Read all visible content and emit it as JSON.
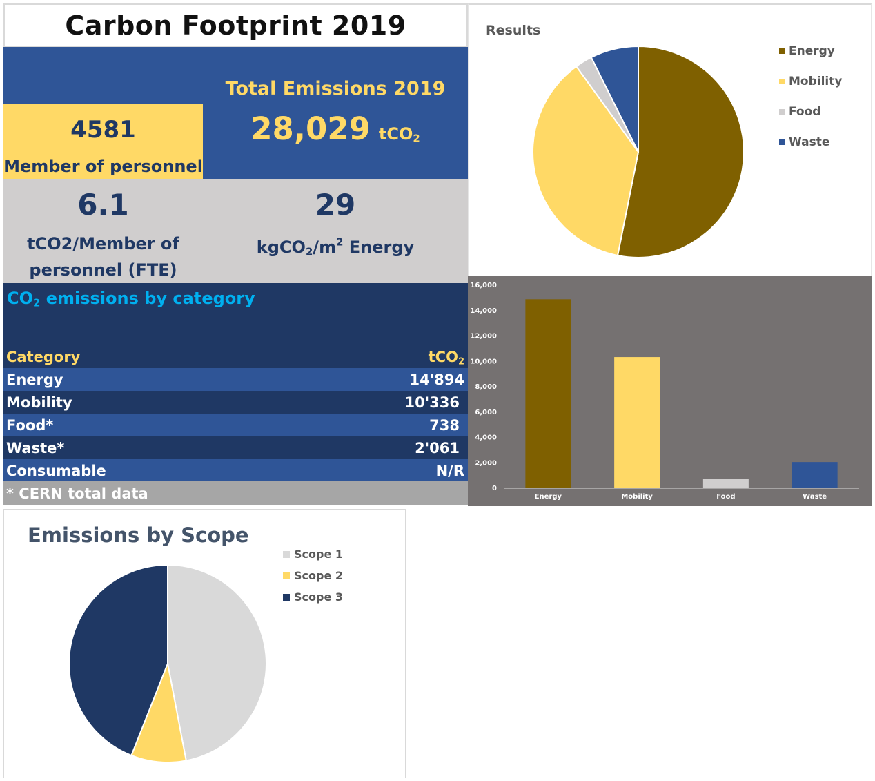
{
  "header": {
    "title": "Carbon Footprint 2019"
  },
  "summary": {
    "personnel_value": "4581",
    "personnel_label": "Member of personnel",
    "total_label": "Total Emissions 2019",
    "total_value": "28,029",
    "total_unit_prefix": "tCO",
    "total_unit_sub": "2"
  },
  "kpis": {
    "per_person_value": "6.1",
    "per_person_label_line1": "tCO2/Member of",
    "per_person_label_line2": "personnel (FTE)",
    "per_area_value": "29",
    "per_area_label_kg": "kgCO",
    "per_area_label_sub": "2",
    "per_area_label_m": "/m",
    "per_area_label_sup": "2",
    "per_area_label_tail": " Energy"
  },
  "category_table": {
    "heading_prefix": "CO",
    "heading_sub": "2",
    "heading_tail": " emissions by category",
    "col_category": "Category",
    "col_unit_prefix": "tCO",
    "col_unit_sub": "2",
    "rows": [
      {
        "category": "Energy",
        "value": "14'894"
      },
      {
        "category": "Mobility",
        "value": "10'336"
      },
      {
        "category": "Food*",
        "value": "738"
      },
      {
        "category": "Waste*",
        "value": "2'061"
      },
      {
        "category": "Consumable",
        "value": "N/R"
      }
    ],
    "footnote": "* CERN total data"
  },
  "colors": {
    "energy": "#7f6000",
    "mobility": "#ffd966",
    "food": "#d0cece",
    "waste": "#2f5597",
    "scope1": "#d9d9d9",
    "scope2": "#ffd966",
    "scope3": "#1f3864"
  },
  "chart_data": [
    {
      "type": "pie",
      "title": "Results",
      "categories": [
        "Energy",
        "Mobility",
        "Food",
        "Waste"
      ],
      "values": [
        14894,
        10336,
        738,
        2061
      ],
      "legend": "right"
    },
    {
      "type": "bar",
      "categories": [
        "Energy",
        "Mobility",
        "Food",
        "Waste"
      ],
      "values": [
        14894,
        10336,
        738,
        2061
      ],
      "ylim": [
        0,
        16000
      ],
      "yticks": [
        "0",
        "2,000",
        "4,000",
        "6,000",
        "8,000",
        "10,000",
        "12,000",
        "14,000",
        "16,000"
      ],
      "ytick_values": [
        0,
        2000,
        4000,
        6000,
        8000,
        10000,
        12000,
        14000,
        16000
      ],
      "grid": false
    },
    {
      "type": "pie",
      "title": "Emissions by Scope",
      "categories": [
        "Scope 1",
        "Scope 2",
        "Scope 3"
      ],
      "values": [
        47,
        9,
        44
      ],
      "legend": "right"
    }
  ]
}
